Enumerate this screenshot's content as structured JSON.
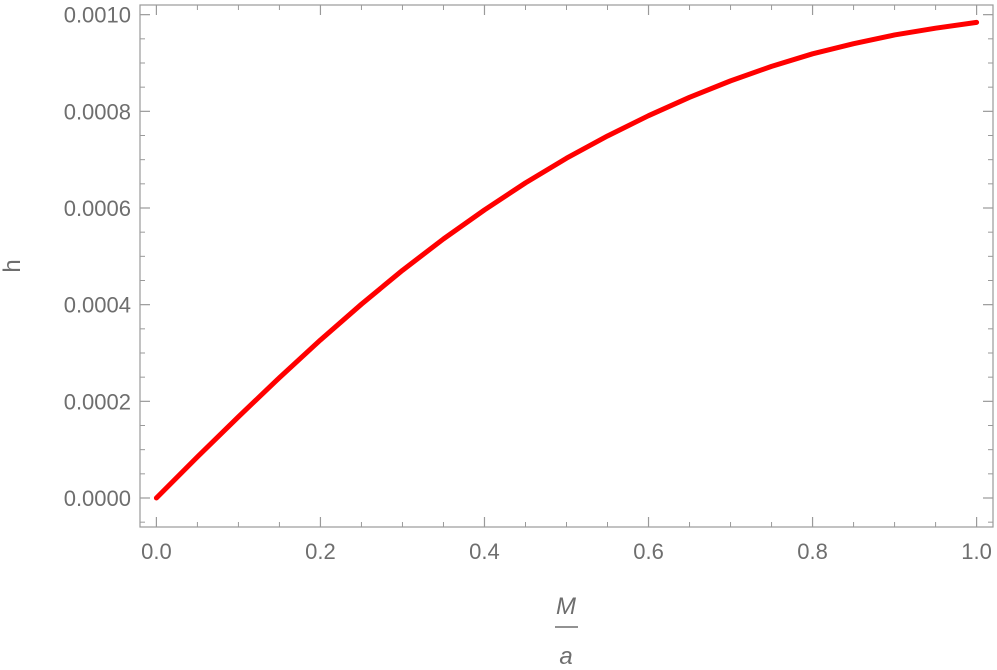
{
  "chart_data": {
    "type": "line",
    "title": "",
    "xlabel_numerator": "M",
    "xlabel_denominator": "a",
    "ylabel": "h",
    "xlim": [
      -0.02,
      1.02
    ],
    "ylim": [
      -6e-05,
      0.00102
    ],
    "x_ticks": [
      0.0,
      0.2,
      0.4,
      0.6,
      0.8,
      1.0
    ],
    "x_tick_labels": [
      "0.0",
      "0.2",
      "0.4",
      "0.6",
      "0.8",
      "1.0"
    ],
    "y_ticks": [
      0.0,
      0.0002,
      0.0004,
      0.0006,
      0.0008,
      0.001
    ],
    "y_tick_labels": [
      "0.0000",
      "0.0002",
      "0.0004",
      "0.0006",
      "0.0008",
      "0.0010"
    ],
    "grid": false,
    "legend": "none",
    "series": [
      {
        "color": "#ff0000",
        "x": [
          0.0,
          0.05,
          0.1,
          0.15,
          0.2,
          0.25,
          0.3,
          0.35,
          0.4,
          0.45,
          0.5,
          0.55,
          0.6,
          0.65,
          0.7,
          0.75,
          0.8,
          0.85,
          0.9,
          0.95,
          1.0
        ],
        "y": [
          0.0,
          8.5e-05,
          0.000168,
          0.000249,
          0.000327,
          0.000401,
          0.000471,
          0.000536,
          0.000596,
          0.000652,
          0.000703,
          0.000749,
          0.000791,
          0.000829,
          0.000863,
          0.000893,
          0.000919,
          0.00094,
          0.000958,
          0.000972,
          0.000984
        ]
      }
    ]
  }
}
